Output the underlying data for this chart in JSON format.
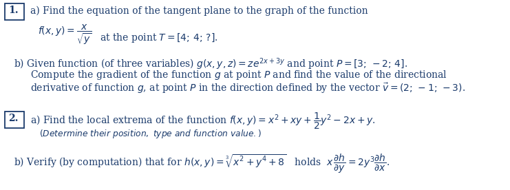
{
  "background_color": "#ffffff",
  "text_color": "#1a3a6b",
  "figsize": [
    7.41,
    2.76
  ],
  "dpi": 100,
  "fs": 10.0
}
